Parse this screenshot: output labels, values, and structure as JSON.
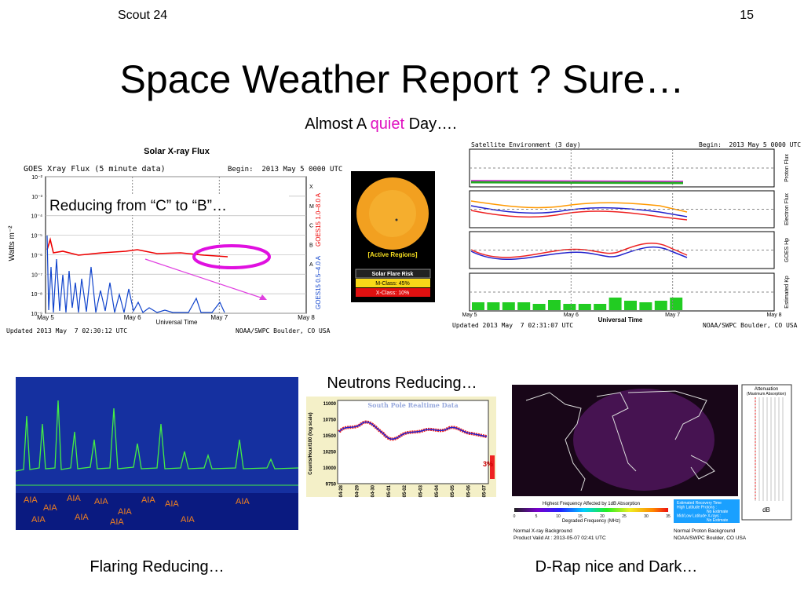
{
  "header": {
    "left": "Scout 24",
    "right": "15"
  },
  "title": "Space Weather Report ? Sure…",
  "subtitle": {
    "before": "Almost A",
    "highlight": "quiet",
    "after": "Day…."
  },
  "xray": {
    "title": "Solar X-ray Flux",
    "subtitle": "GOES Xray Flux (5 minute data)",
    "begin": "Begin:  2013 May 5 0000 UTC",
    "annotation": "Reducing from “C” to “B”…",
    "ylabel": "Watts m⁻²",
    "yticks": [
      "10⁻²",
      "10⁻³",
      "10⁻⁴",
      "10⁻⁵",
      "10⁻⁶",
      "10⁻⁷",
      "10⁻⁸",
      "10⁻⁹"
    ],
    "classes": [
      "X",
      "M",
      "C",
      "B",
      "A"
    ],
    "right_red": "GOES15 1.0–8.0 A",
    "right_blue": "GOES15 0.5–4.0 A",
    "xlabels": [
      "May 5",
      "May 6",
      "May 7",
      "May 8"
    ],
    "xtitle": "Universal Time",
    "updated": "Updated 2013 May  7 02:30:12 UTC",
    "source": "NOAA/SWPC Boulder, CO USA"
  },
  "sun": {
    "label": "[Active Regions]",
    "risk_title": "Solar Flare Risk",
    "m_class": "M-Class: 45%",
    "x_class": "X-Class: 10%"
  },
  "satellite": {
    "title": "Satellite Environment (3 day)",
    "begin": "Begin:  2013 May 5 0000 UTC",
    "panels": [
      "Proton Flux",
      "Electron Flux",
      "GOES Hp",
      "Estimated Kp"
    ],
    "xlabels": [
      "May 5",
      "May 6",
      "May 7",
      "May 8"
    ],
    "xtitle": "Universal Time",
    "updated": "Updated 2013 May  7 02:31:07 UTC",
    "source": "NOAA/SWPC Boulder, CO USA"
  },
  "flaring": {
    "caption": "Flaring Reducing…",
    "instrument": "AIA"
  },
  "neutrons": {
    "caption": "Neutrons Reducing…",
    "title": "South Pole Realtime Data",
    "ylabel": "Counts/Hour/100 (log scale)",
    "yticks": [
      "11000",
      "10750",
      "10500",
      "10250",
      "10000",
      "9750"
    ],
    "xlabels": [
      "04-28",
      "04-29",
      "04-30",
      "05-01",
      "05-02",
      "05-03",
      "05-04",
      "05-05",
      "05-06",
      "05-07"
    ],
    "change": "3%"
  },
  "drap": {
    "caption": "D-Rap nice and Dark…",
    "scale_title": "Attenuation",
    "scale_sub": "(Maximum Absorption)",
    "scale_unit": "dB",
    "bar_title": "Highest Frequency Affected by 1dB Absorption",
    "bar_ticks": [
      "0",
      "5",
      "10",
      "15",
      "20",
      "25",
      "30",
      "35"
    ],
    "bar_label": "Degraded Frequency (MHz)",
    "recovery": [
      "Estimated Recovery Time",
      "High Latitude Protons :",
      "No Estimate",
      "Mid/Low Latitude X-rays :",
      "No Estimate"
    ],
    "foot_left": [
      "Normal X-ray Background",
      "Product Valid At : 2013-05-07 02:41 UTC"
    ],
    "foot_right": [
      "Normal Proton Background",
      "NOAA/SWPC Boulder, CO USA"
    ]
  }
}
